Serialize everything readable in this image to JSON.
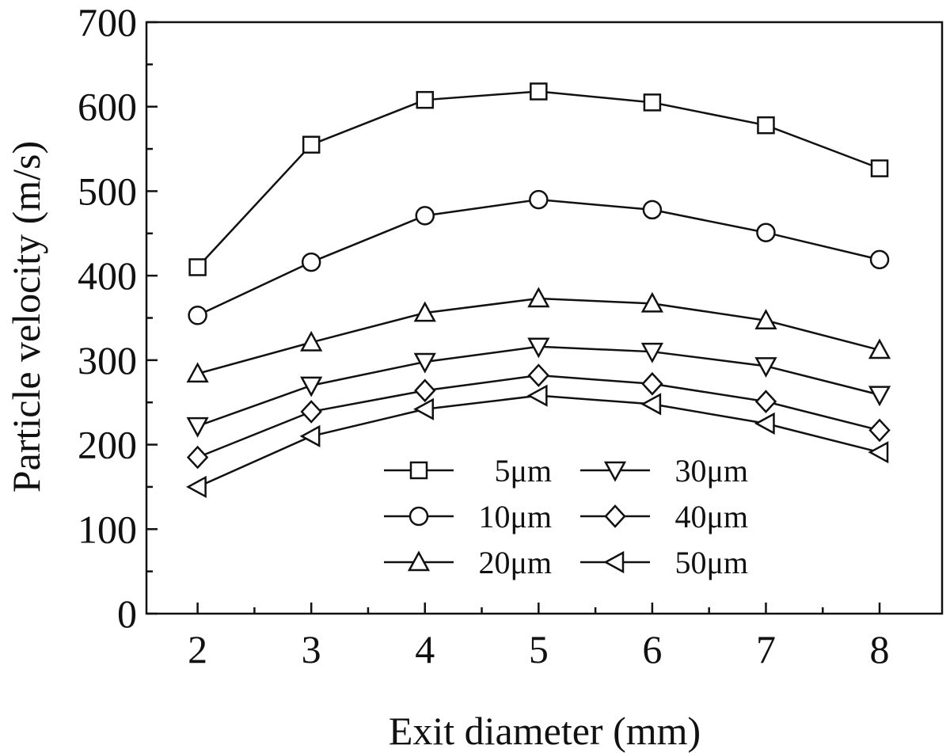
{
  "chart_data": {
    "type": "line",
    "xlabel": "Exit diameter (mm)",
    "ylabel": "Particle velocity (m/s)",
    "xlim": [
      1.55,
      8.55
    ],
    "ylim": [
      0,
      700
    ],
    "xticks": [
      2,
      3,
      4,
      5,
      6,
      7,
      8
    ],
    "yticks": [
      0,
      100,
      200,
      300,
      400,
      500,
      600,
      700
    ],
    "x": [
      2,
      3,
      4,
      5,
      6,
      7,
      8
    ],
    "grid": false,
    "legend_position": "bottom-center",
    "series": [
      {
        "name": "5μm",
        "marker": "square",
        "values": [
          410,
          555,
          608,
          618,
          605,
          578,
          527
        ]
      },
      {
        "name": "10μm",
        "marker": "circle",
        "values": [
          353,
          416,
          471,
          490,
          478,
          451,
          419
        ]
      },
      {
        "name": "20μm",
        "marker": "triangle-up",
        "values": [
          284,
          321,
          356,
          373,
          367,
          347,
          312
        ]
      },
      {
        "name": "30μm",
        "marker": "triangle-down",
        "values": [
          222,
          270,
          298,
          316,
          310,
          293,
          259
        ]
      },
      {
        "name": "40μm",
        "marker": "diamond",
        "values": [
          185,
          239,
          264,
          282,
          272,
          251,
          217
        ]
      },
      {
        "name": "50μm",
        "marker": "triangle-left",
        "values": [
          150,
          210,
          242,
          258,
          248,
          225,
          191
        ]
      }
    ]
  }
}
